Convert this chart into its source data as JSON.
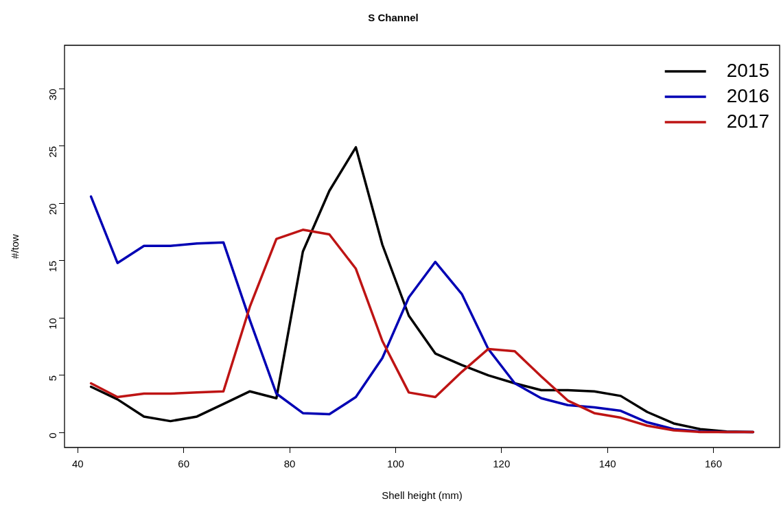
{
  "chart_data": {
    "type": "line",
    "title": "S Channel",
    "xlabel": "Shell height (mm)",
    "ylabel": "#/tow",
    "x": [
      42.5,
      47.5,
      52.5,
      57.5,
      62.5,
      67.5,
      72.5,
      77.5,
      82.5,
      87.5,
      92.5,
      97.5,
      102.5,
      107.5,
      112.5,
      117.5,
      122.5,
      127.5,
      132.5,
      137.5,
      142.5,
      147.5,
      152.5,
      157.5,
      162.5,
      167.5
    ],
    "series": [
      {
        "name": "2015",
        "color": "#000000",
        "values": [
          4.0,
          2.9,
          1.4,
          1.0,
          1.4,
          2.5,
          3.6,
          3.0,
          15.8,
          21.1,
          24.9,
          16.4,
          10.2,
          6.9,
          5.9,
          5.0,
          4.3,
          3.7,
          3.7,
          3.6,
          3.2,
          1.8,
          0.8,
          0.3,
          0.1,
          0.05
        ]
      },
      {
        "name": "2016",
        "color": "#0000b4",
        "values": [
          20.6,
          14.8,
          16.3,
          16.3,
          16.5,
          16.6,
          9.8,
          3.4,
          1.7,
          1.6,
          3.1,
          6.5,
          11.8,
          14.9,
          12.1,
          7.3,
          4.3,
          3.0,
          2.4,
          2.2,
          1.9,
          0.9,
          0.3,
          0.1,
          0.05,
          0.05
        ]
      },
      {
        "name": "2017",
        "color": "#be1414",
        "values": [
          4.3,
          3.1,
          3.4,
          3.4,
          3.5,
          3.6,
          11.0,
          16.9,
          17.7,
          17.3,
          14.3,
          8.0,
          3.5,
          3.1,
          5.3,
          7.3,
          7.1,
          4.9,
          2.8,
          1.7,
          1.3,
          0.6,
          0.2,
          0.05,
          0.05,
          0.05
        ]
      }
    ],
    "xlim": [
      37.5,
      172.5
    ],
    "xticks": [
      40,
      60,
      80,
      100,
      120,
      140,
      160
    ],
    "ylim": [
      -1.3,
      33.8
    ],
    "yticks": [
      0,
      5,
      10,
      15,
      20,
      25,
      30
    ],
    "grid": false,
    "legend": "top right",
    "marker": "none",
    "line_style": "solid"
  }
}
